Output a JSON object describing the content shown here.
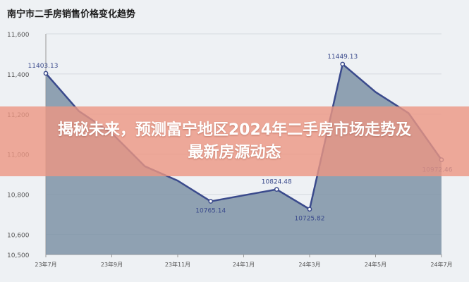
{
  "chart_data": {
    "type": "area",
    "title": "南宁市二手房销售价格变化趋势",
    "xlabel": "",
    "ylabel": "",
    "ylim": [
      10500,
      11600
    ],
    "yticks": [
      10500,
      10600,
      10800,
      11000,
      11200,
      11400,
      11600
    ],
    "ytick_labels": [
      "10,500",
      "10,600",
      "10,800",
      "11,000",
      "11,200",
      "11,400",
      "11,600"
    ],
    "xtick_labels": [
      "23年7月",
      "23年9月",
      "23年11月",
      "24年1月",
      "24年3月",
      "24年5月",
      "24年7月"
    ],
    "grid": true,
    "legend": "none",
    "series": [
      {
        "x": [
          "23年7月",
          "23年8月",
          "23年9月",
          "23年10月",
          "23年11月",
          "23年12月",
          "24年1月",
          "24年2月",
          "24年3月",
          "24年4月",
          "24年5月",
          "24年6月",
          "24年7月"
        ],
        "values": [
          11403.13,
          11215,
          11105,
          10940,
          10868,
          10765.14,
          10795,
          10824.48,
          10725.82,
          11449.13,
          11310,
          11205,
          10972.46
        ]
      }
    ],
    "data_labels": [
      {
        "index": 0,
        "text": "11403.13"
      },
      {
        "index": 5,
        "text": "10765.14"
      },
      {
        "index": 7,
        "text": "10824.48"
      },
      {
        "index": 8,
        "text": "10725.82"
      },
      {
        "index": 9,
        "text": "11449.13"
      },
      {
        "index": 12,
        "text": "10972.46"
      }
    ],
    "colors": {
      "line": "#3a4a8c",
      "fill": "#7e93a6",
      "grid": "#d6dbe0",
      "label": "#3a4a8c"
    }
  },
  "banner": {
    "text": "揭秘未来，预测富宁地区2024年二手房市场走势及最新房源动态"
  }
}
